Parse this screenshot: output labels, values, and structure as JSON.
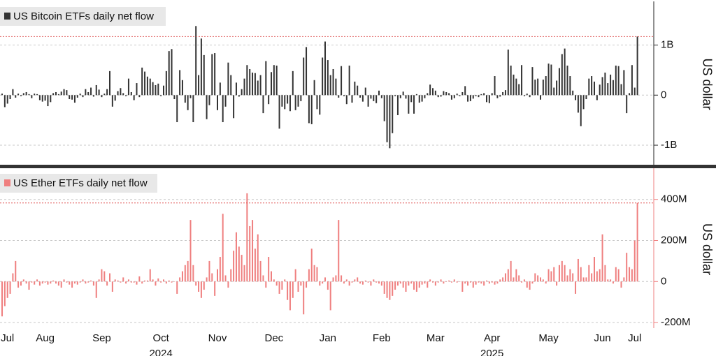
{
  "chart_data": [
    {
      "type": "bar",
      "series": [
        {
          "name": "US Bitcoin ETFs daily net flow",
          "color": "#333333",
          "values": [
            30000000.0,
            -240000000.0,
            -170000000.0,
            -80000000.0,
            120000000.0,
            -50000000.0,
            30000000.0,
            -20000000.0,
            40000000.0,
            60000000.0,
            20000000.0,
            -60000000.0,
            30000000.0,
            20000000.0,
            -100000000.0,
            -130000000.0,
            -110000000.0,
            -220000000.0,
            -140000000.0,
            40000000.0,
            60000000.0,
            20000000.0,
            70000000.0,
            120000000.0,
            100000000.0,
            -80000000.0,
            -90000000.0,
            -150000000.0,
            -50000000.0,
            30000000.0,
            -40000000.0,
            120000000.0,
            60000000.0,
            150000000.0,
            -30000000.0,
            200000000.0,
            110000000.0,
            -40000000.0,
            30000000.0,
            120000000.0,
            480000000.0,
            -230000000.0,
            -110000000.0,
            80000000.0,
            140000000.0,
            40000000.0,
            -20000000.0,
            330000000.0,
            60000000.0,
            -100000000.0,
            240000000.0,
            -40000000.0,
            550000000.0,
            470000000.0,
            370000000.0,
            330000000.0,
            260000000.0,
            200000000.0,
            230000000.0,
            -20000000.0,
            190000000.0,
            480000000.0,
            880000000.0,
            920000000.0,
            -80000000.0,
            -540000000.0,
            500000000.0,
            300000000.0,
            -150000000.0,
            -300000000.0,
            -60000000.0,
            -540000000.0,
            1380000000.0,
            400000000.0,
            1130000000.0,
            800000000.0,
            -480000000.0,
            -200000000.0,
            820000000.0,
            840000000.0,
            -300000000.0,
            250000000.0,
            -540000000.0,
            -230000000.0,
            650000000.0,
            400000000.0,
            -460000000.0,
            250000000.0,
            -30000000.0,
            120000000.0,
            330000000.0,
            600000000.0,
            520000000.0,
            450000000.0,
            440000000.0,
            290000000.0,
            400000000.0,
            -360000000.0,
            680000000.0,
            -180000000.0,
            460000000.0,
            600000000.0,
            590000000.0,
            -670000000.0,
            -230000000.0,
            -280000000.0,
            -170000000.0,
            -320000000.0,
            480000000.0,
            -300000000.0,
            -230000000.0,
            -120000000.0,
            750000000.0,
            960000000.0,
            -560000000.0,
            -580000000.0,
            300000000.0,
            -280000000.0,
            -390000000.0,
            750000000.0,
            1070000000.0,
            700000000.0,
            400000000.0,
            520000000.0,
            330000000.0,
            -50000000.0,
            580000000.0,
            -20000000.0,
            -180000000.0,
            590000000.0,
            -150000000.0,
            270000000.0,
            190000000.0,
            -50000000.0,
            -130000000.0,
            150000000.0,
            -230000000.0,
            -70000000.0,
            -120000000.0,
            -160000000.0,
            90000000.0,
            -60000000.0,
            -520000000.0,
            -940000000.0,
            -1060000000.0,
            -760000000.0,
            -20000000.0,
            -400000000.0,
            -60000000.0,
            70000000.0,
            -70000000.0,
            -370000000.0,
            -140000000.0,
            -370000000.0,
            20000000.0,
            -150000000.0,
            -130000000.0,
            -60000000.0,
            40000000.0,
            210000000.0,
            140000000.0,
            90000000.0,
            -40000000.0,
            -30000000.0,
            80000000.0,
            60000000.0,
            40000000.0,
            -90000000.0,
            -60000000.0,
            30000000.0,
            -20000000.0,
            60000000.0,
            180000000.0,
            -130000000.0,
            -120000000.0,
            -70000000.0,
            -20000000.0,
            -40000000.0,
            20000000.0,
            40000000.0,
            -140000000.0,
            -160000000.0,
            40000000.0,
            380000000.0,
            -60000000.0,
            -30000000.0,
            60000000.0,
            100000000.0,
            910000000.0,
            590000000.0,
            410000000.0,
            330000000.0,
            220000000.0,
            600000000.0,
            -20000000.0,
            30000000.0,
            -40000000.0,
            560000000.0,
            310000000.0,
            330000000.0,
            -90000000.0,
            310000000.0,
            380000000.0,
            630000000.0,
            610000000.0,
            150000000.0,
            290000000.0,
            540000000.0,
            820000000.0,
            930000000.0,
            590000000.0,
            380000000.0,
            90000000.0,
            -100000000.0,
            -350000000.0,
            -620000000.0,
            -280000000.0,
            -80000000.0,
            330000000.0,
            380000000.0,
            270000000.0,
            -100000000.0,
            210000000.0,
            360000000.0,
            450000000.0,
            240000000.0,
            410000000.0,
            300000000.0,
            590000000.0,
            580000000.0,
            220000000.0,
            500000000.0,
            -360000000.0,
            40000000.0,
            600000000.0,
            150000000.0,
            1170000000.0
          ]
        }
      ],
      "ylim": [
        -1390000000.0,
        1830000000.0
      ],
      "yticks": [
        {
          "value": 1000000000.0,
          "label": "1B"
        },
        0,
        {
          "value": -1000000000.0,
          "label": "-1B"
        }
      ],
      "y_label": "US dollar",
      "grid": true,
      "axis_color": "#222222"
    },
    {
      "type": "bar",
      "series": [
        {
          "name": "US Ether ETFs daily net flow",
          "color": "#ef7f7f",
          "values": [
            -170000000.0,
            -120000000.0,
            -80000000.0,
            -60000000.0,
            40000000.0,
            100000000.0,
            -30000000.0,
            -20000000.0,
            10000000.0,
            -10000000.0,
            -40000000.0,
            -5000000.0,
            -15000000.0,
            10000000.0,
            -20000000.0,
            -10000000.0,
            -5000000.0,
            -15000000.0,
            -10000000.0,
            5000000.0,
            -10000000.0,
            -20000000.0,
            -30000000.0,
            10000000.0,
            -5000000.0,
            -15000000.0,
            -30000000.0,
            -10000000.0,
            -15000000.0,
            -5000000.0,
            10000000.0,
            -10000000.0,
            -5000000.0,
            5000000.0,
            -20000000.0,
            -80000000.0,
            10000000.0,
            60000000.0,
            50000000.0,
            -20000000.0,
            40000000.0,
            -50000000.0,
            10000000.0,
            5000000.0,
            -5000000.0,
            20000000.0,
            -10000000.0,
            10000000.0,
            -5000000.0,
            -5000000.0,
            -15000000.0,
            25000000.0,
            -10000000.0,
            5000000.0,
            5000000.0,
            60000000.0,
            10000000.0,
            -20000000.0,
            15000000.0,
            -5000000.0,
            10000000.0,
            -10000000.0,
            5000000.0,
            -5000000.0,
            0,
            -60000000.0,
            20000000.0,
            50000000.0,
            80000000.0,
            100000000.0,
            300000000.0,
            80000000.0,
            -20000000.0,
            -50000000.0,
            -80000000.0,
            -40000000.0,
            20000000.0,
            100000000.0,
            40000000.0,
            -70000000.0,
            60000000.0,
            120000000.0,
            330000000.0,
            30000000.0,
            -30000000.0,
            60000000.0,
            150000000.0,
            240000000.0,
            170000000.0,
            130000000.0,
            80000000.0,
            430000000.0,
            270000000.0,
            300000000.0,
            160000000.0,
            230000000.0,
            100000000.0,
            30000000.0,
            -30000000.0,
            120000000.0,
            50000000.0,
            10000000.0,
            -20000000.0,
            -60000000.0,
            -40000000.0,
            10000000.0,
            -90000000.0,
            -140000000.0,
            -80000000.0,
            60000000.0,
            -50000000.0,
            -20000000.0,
            -160000000.0,
            -30000000.0,
            60000000.0,
            160000000.0,
            80000000.0,
            70000000.0,
            -20000000.0,
            -10000000.0,
            20000000.0,
            -40000000.0,
            -140000000.0,
            20000000.0,
            30000000.0,
            300000000.0,
            30000000.0,
            -10000000.0,
            10000000.0,
            -20000000.0,
            -5000000.0,
            10000000.0,
            20000000.0,
            -10000000.0,
            -15000000.0,
            5000000.0,
            -5000000.0,
            -20000000.0,
            10000000.0,
            -5000000.0,
            -10000000.0,
            -20000000.0,
            -60000000.0,
            -80000000.0,
            -90000000.0,
            -70000000.0,
            -40000000.0,
            -20000000.0,
            -10000000.0,
            -30000000.0,
            -50000000.0,
            -20000000.0,
            -10000000.0,
            -40000000.0,
            -50000000.0,
            -30000000.0,
            -15000000.0,
            -10000000.0,
            -30000000.0,
            10000000.0,
            -5000000.0,
            -20000000.0,
            -5000000.0,
            10000000.0,
            -10000000.0,
            0,
            5000000.0,
            -5000000.0,
            10000000.0,
            -5000000.0,
            0,
            -50000000.0,
            -10000000.0,
            -20000000.0,
            -5000000.0,
            -30000000.0,
            -15000000.0,
            -5000000.0,
            -10000000.0,
            -20000000.0,
            5000000.0,
            -10000000.0,
            -5000000.0,
            -15000000.0,
            -10000000.0,
            10000000.0,
            20000000.0,
            40000000.0,
            60000000.0,
            100000000.0,
            20000000.0,
            60000000.0,
            30000000.0,
            -5000000.0,
            10000000.0,
            -30000000.0,
            -40000000.0,
            -10000000.0,
            40000000.0,
            30000000.0,
            20000000.0,
            10000000.0,
            -10000000.0,
            60000000.0,
            50000000.0,
            70000000.0,
            -20000000.0,
            80000000.0,
            100000000.0,
            80000000.0,
            30000000.0,
            60000000.0,
            40000000.0,
            -60000000.0,
            110000000.0,
            70000000.0,
            20000000.0,
            20000000.0,
            80000000.0,
            40000000.0,
            120000000.0,
            50000000.0,
            60000000.0,
            230000000.0,
            80000000.0,
            10000000.0,
            10000000.0,
            -10000000.0,
            70000000.0,
            60000000.0,
            -30000000.0,
            20000000.0,
            140000000.0,
            70000000.0,
            60000000.0,
            200000000.0,
            383000000.0
          ]
        }
      ],
      "ylim": [
        -227000000.0,
        542000000.0
      ],
      "yticks": [
        {
          "value": 400000000.0,
          "label": "400M"
        },
        {
          "value": 200000000.0,
          "label": "200M"
        },
        0,
        {
          "value": -200000000.0,
          "label": "-200M"
        }
      ],
      "y_label": "US dollar",
      "grid": true,
      "axis_color": "#ef7f7f",
      "categories": [
        null,
        null,
        "Jul",
        null,
        null,
        null,
        null,
        null,
        null,
        null,
        null,
        null,
        null,
        null,
        null,
        null,
        "Aug",
        null,
        null,
        null,
        null,
        null,
        null,
        null,
        null,
        null,
        null,
        null,
        null,
        null,
        null,
        null,
        null,
        null,
        null,
        null,
        null,
        "Sep",
        null,
        null,
        null,
        null,
        null,
        null,
        null,
        null,
        null,
        null,
        null,
        null,
        null,
        null,
        null,
        null,
        null,
        null,
        null,
        null,
        null,
        "Oct\n2024",
        null,
        null,
        null,
        null,
        null,
        null,
        null,
        null,
        null,
        null,
        null,
        null,
        null,
        null,
        null,
        null,
        null,
        null,
        null,
        null,
        "Nov",
        null,
        null,
        null,
        null,
        null,
        null,
        null,
        null,
        null,
        null,
        null,
        null,
        null,
        null,
        null,
        null,
        null,
        null,
        null,
        null,
        "Dec",
        null,
        null,
        null,
        null,
        null,
        null,
        null,
        null,
        null,
        null,
        null,
        null,
        null,
        null,
        null,
        null,
        null,
        null,
        null,
        "Jan",
        null,
        null,
        null,
        null,
        null,
        null,
        null,
        null,
        null,
        null,
        null,
        null,
        null,
        null,
        null,
        null,
        null,
        null,
        null,
        "Feb",
        null,
        null,
        null,
        null,
        null,
        null,
        null,
        null,
        null,
        null,
        null,
        null,
        null,
        null,
        null,
        null,
        null,
        null,
        null,
        "Mar",
        null,
        null,
        null,
        null,
        null,
        null,
        null,
        null,
        null,
        null,
        null,
        null,
        null,
        null,
        null,
        null,
        null,
        null,
        null,
        null,
        "Apr\n2025",
        null,
        null,
        null,
        null,
        null,
        null,
        null,
        null,
        null,
        null,
        null,
        null,
        null,
        null,
        null,
        null,
        null,
        null,
        null,
        null,
        "May",
        null,
        null,
        null,
        null,
        null,
        null,
        null,
        null,
        null,
        null,
        null,
        null,
        null,
        null,
        null,
        null,
        null,
        null,
        null,
        "Jun",
        null,
        null,
        null,
        null,
        null,
        null,
        null,
        null,
        null,
        null,
        null,
        "Jul",
        null
      ]
    }
  ]
}
